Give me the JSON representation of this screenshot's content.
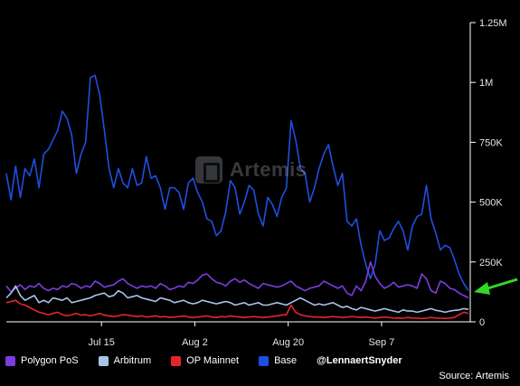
{
  "chart_data": {
    "type": "line",
    "watermark": "Artemis",
    "handle": "@LennaertSnyder",
    "source": "Source: Artemis",
    "x_ticks": [
      "Jul 15",
      "Aug 2",
      "Aug 20",
      "Sep 7"
    ],
    "y_ticks": [
      "0",
      "250K",
      "500K",
      "750K",
      "1M",
      "1.25M"
    ],
    "ylim": [
      0,
      1250000
    ],
    "x_count": 100,
    "grid": false,
    "legend_position": "bottom",
    "series": [
      {
        "name": "Base",
        "color": "#1f4fe0",
        "values": [
          620000,
          510000,
          650000,
          520000,
          640000,
          610000,
          680000,
          560000,
          700000,
          720000,
          760000,
          800000,
          880000,
          850000,
          780000,
          620000,
          700000,
          750000,
          1020000,
          1030000,
          950000,
          800000,
          640000,
          560000,
          640000,
          580000,
          560000,
          640000,
          570000,
          580000,
          690000,
          600000,
          610000,
          560000,
          470000,
          560000,
          560000,
          540000,
          470000,
          580000,
          600000,
          540000,
          500000,
          430000,
          420000,
          360000,
          380000,
          460000,
          590000,
          560000,
          450000,
          500000,
          570000,
          550000,
          450000,
          400000,
          520000,
          490000,
          440000,
          520000,
          560000,
          840000,
          760000,
          640000,
          620000,
          500000,
          560000,
          640000,
          700000,
          740000,
          650000,
          570000,
          620000,
          420000,
          400000,
          430000,
          320000,
          240000,
          180000,
          240000,
          380000,
          340000,
          350000,
          390000,
          420000,
          380000,
          300000,
          400000,
          440000,
          450000,
          570000,
          430000,
          370000,
          300000,
          320000,
          310000,
          260000,
          200000,
          160000,
          130000
        ]
      },
      {
        "name": "Polygon PoS",
        "color": "#7e3ce0",
        "values": [
          150000,
          125000,
          140000,
          155000,
          135000,
          150000,
          145000,
          160000,
          140000,
          130000,
          140000,
          135000,
          150000,
          145000,
          160000,
          155000,
          140000,
          150000,
          145000,
          170000,
          160000,
          145000,
          150000,
          155000,
          170000,
          180000,
          160000,
          150000,
          140000,
          150000,
          145000,
          150000,
          140000,
          160000,
          150000,
          135000,
          140000,
          150000,
          145000,
          165000,
          160000,
          175000,
          195000,
          200000,
          180000,
          165000,
          160000,
          150000,
          170000,
          180000,
          165000,
          175000,
          160000,
          150000,
          140000,
          160000,
          155000,
          150000,
          145000,
          150000,
          160000,
          170000,
          150000,
          140000,
          130000,
          140000,
          145000,
          150000,
          170000,
          160000,
          150000,
          140000,
          150000,
          120000,
          110000,
          150000,
          130000,
          170000,
          250000,
          190000,
          160000,
          140000,
          150000,
          165000,
          145000,
          150000,
          155000,
          150000,
          140000,
          200000,
          180000,
          130000,
          120000,
          170000,
          160000,
          140000,
          135000,
          120000,
          110000,
          100000
        ]
      },
      {
        "name": "Arbitrum",
        "color": "#a9c4e8",
        "values": [
          100000,
          120000,
          150000,
          110000,
          90000,
          100000,
          110000,
          80000,
          90000,
          80000,
          100000,
          95000,
          90000,
          100000,
          80000,
          85000,
          90000,
          95000,
          100000,
          110000,
          115000,
          120000,
          105000,
          110000,
          130000,
          120000,
          100000,
          105000,
          110000,
          100000,
          95000,
          90000,
          85000,
          100000,
          95000,
          90000,
          80000,
          85000,
          90000,
          80000,
          75000,
          80000,
          90000,
          85000,
          80000,
          75000,
          80000,
          85000,
          80000,
          70000,
          75000,
          80000,
          70000,
          75000,
          80000,
          70000,
          70000,
          75000,
          80000,
          75000,
          70000,
          80000,
          90000,
          100000,
          90000,
          80000,
          70000,
          75000,
          70000,
          75000,
          80000,
          70000,
          60000,
          65000,
          55000,
          50000,
          60000,
          55000,
          50000,
          45000,
          50000,
          55000,
          50000,
          45000,
          40000,
          50000,
          45000,
          45000,
          40000,
          45000,
          50000,
          55000,
          48000,
          45000,
          40000,
          45000,
          48000,
          50000,
          55000,
          52000
        ]
      },
      {
        "name": "OP Mainnet",
        "color": "#e8242b",
        "values": [
          80000,
          85000,
          90000,
          75000,
          70000,
          60000,
          50000,
          40000,
          35000,
          30000,
          35000,
          40000,
          30000,
          25000,
          30000,
          35000,
          28000,
          30000,
          25000,
          30000,
          35000,
          28000,
          25000,
          22000,
          25000,
          30000,
          28000,
          25000,
          22000,
          25000,
          20000,
          22000,
          25000,
          20000,
          22000,
          18000,
          20000,
          22000,
          25000,
          20000,
          18000,
          20000,
          22000,
          25000,
          20000,
          18000,
          22000,
          20000,
          25000,
          22000,
          20000,
          18000,
          20000,
          22000,
          20000,
          18000,
          20000,
          22000,
          25000,
          28000,
          30000,
          70000,
          40000,
          30000,
          25000,
          22000,
          20000,
          20000,
          18000,
          20000,
          22000,
          20000,
          18000,
          20000,
          22000,
          20000,
          18000,
          20000,
          18000,
          15000,
          18000,
          20000,
          18000,
          15000,
          16000,
          15000,
          18000,
          16000,
          15000,
          14000,
          15000,
          18000,
          16000,
          15000,
          14000,
          16000,
          18000,
          30000,
          40000,
          35000
        ]
      }
    ]
  }
}
